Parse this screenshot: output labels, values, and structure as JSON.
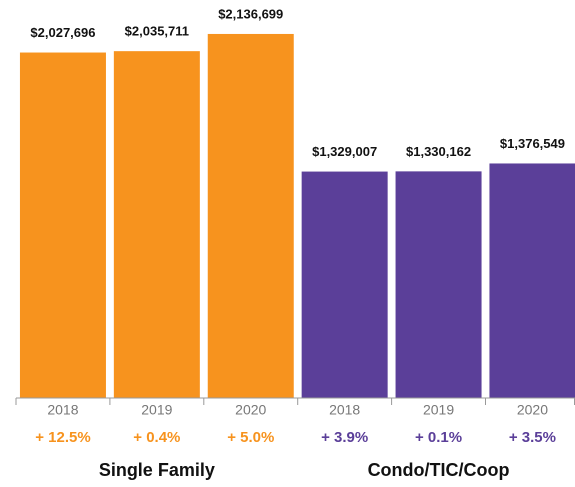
{
  "chart_data": {
    "type": "bar",
    "ylim": [
      0,
      2336000
    ],
    "groups": [
      {
        "name": "Single Family",
        "color": "#F7931E",
        "categories": [
          "2018",
          "2019",
          "2020"
        ],
        "values": [
          2027696,
          2035711,
          2136699
        ],
        "value_labels": [
          "$2,027,696",
          "$2,035,711",
          "$2,136,699"
        ],
        "changes": [
          "+ 12.5%",
          "+ 0.4%",
          "+ 5.0%"
        ]
      },
      {
        "name": "Condo/TIC/Coop",
        "color": "#5B3F99",
        "categories": [
          "2018",
          "2019",
          "2020"
        ],
        "values": [
          1329007,
          1330162,
          1376549
        ],
        "value_labels": [
          "$1,329,007",
          "$1,330,162",
          "$1,376,549"
        ],
        "changes": [
          "+ 3.9%",
          "+ 0.1%",
          "+ 3.5%"
        ]
      }
    ]
  }
}
